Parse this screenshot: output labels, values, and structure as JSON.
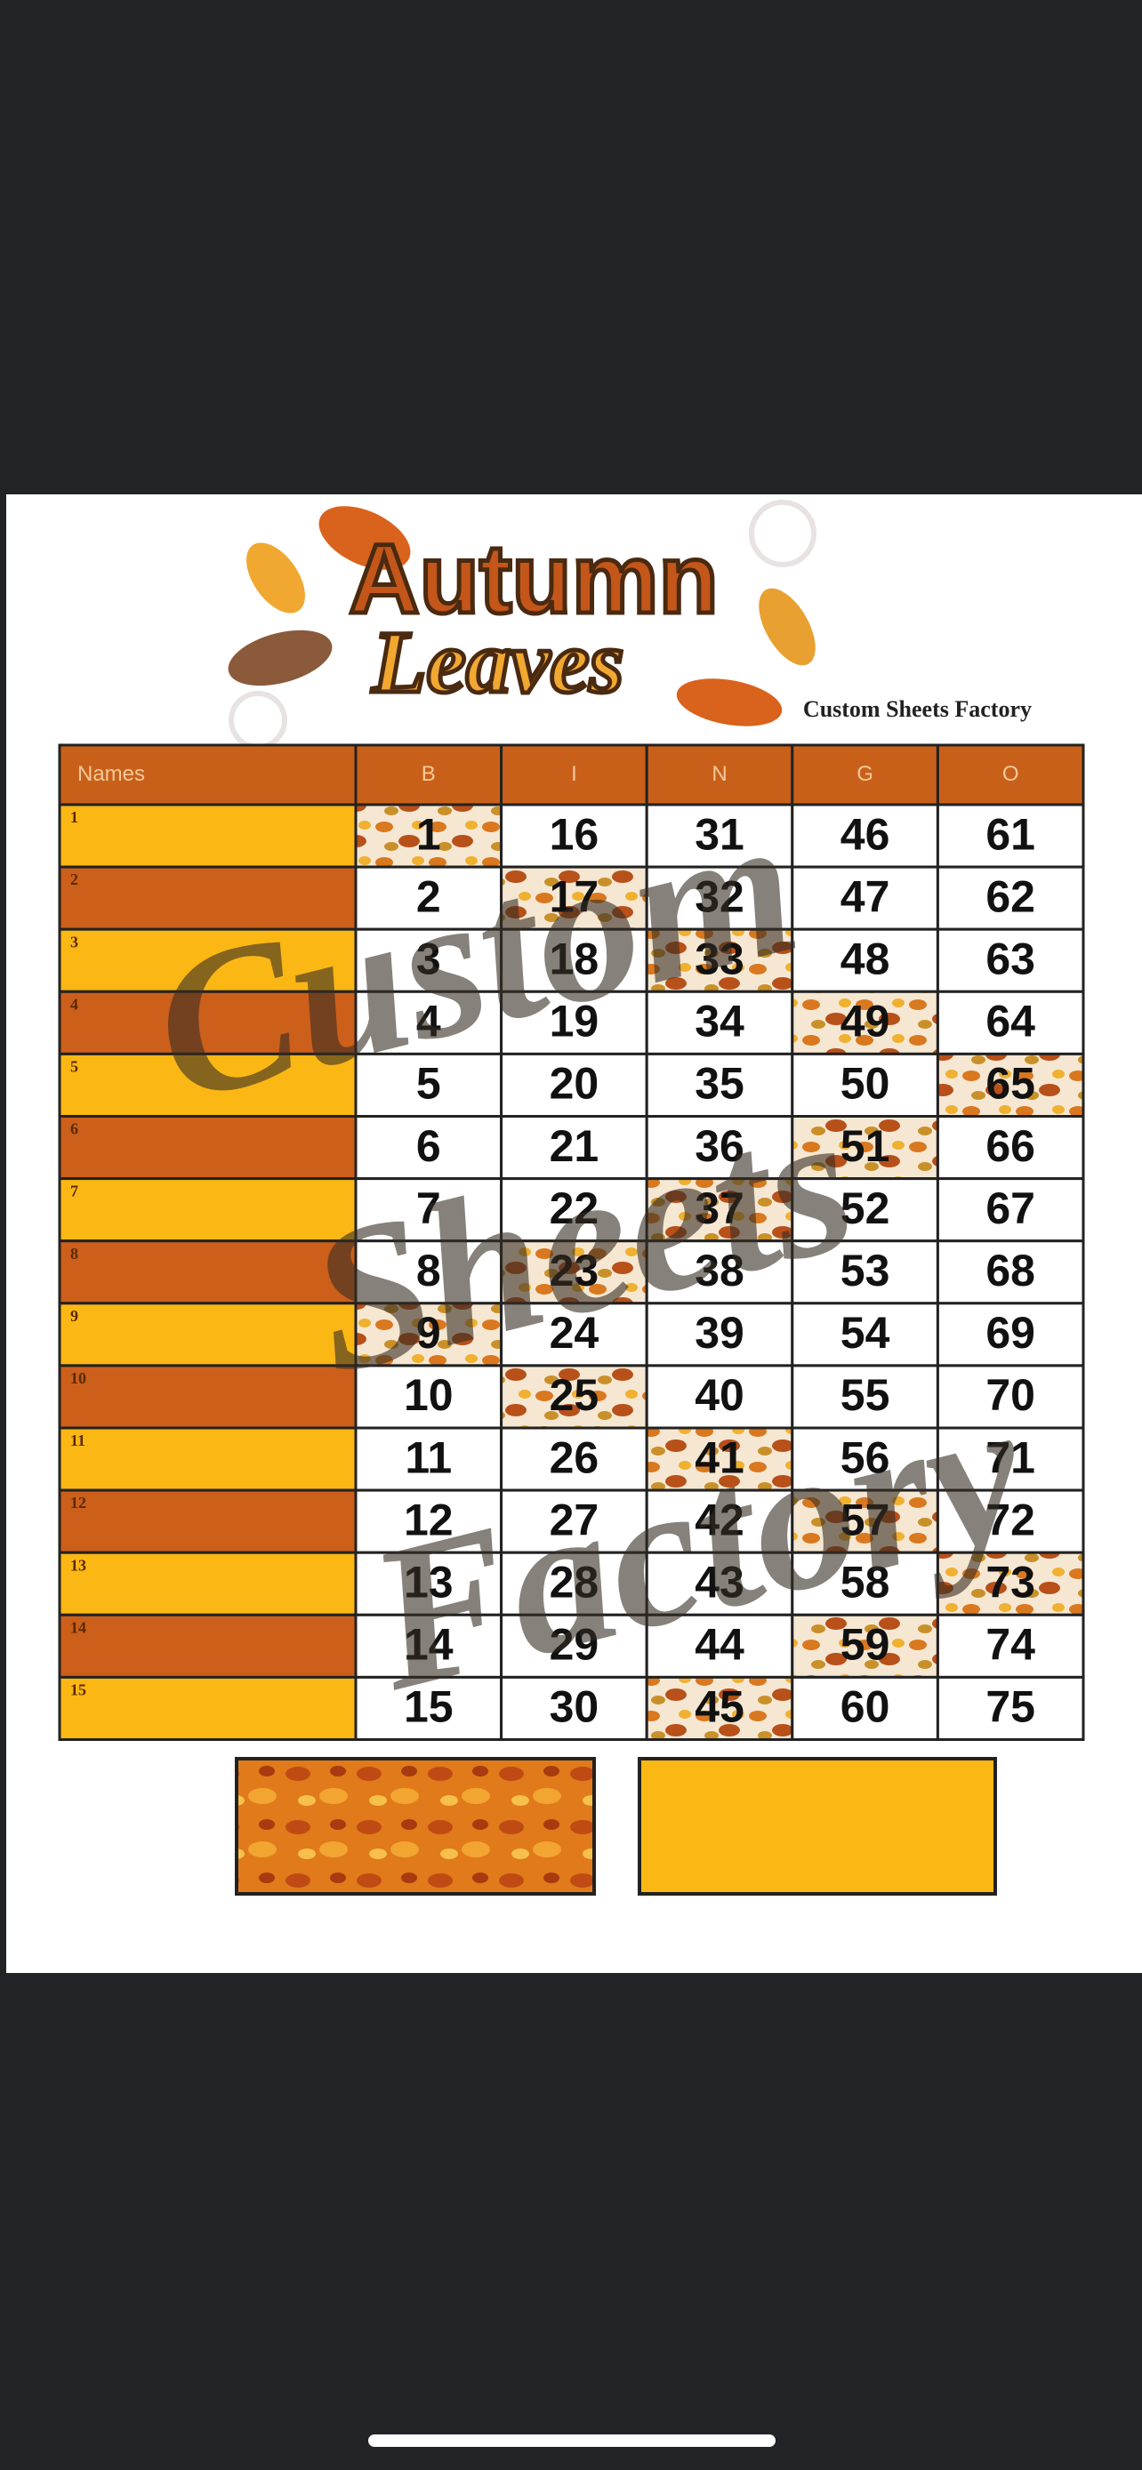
{
  "header": {
    "title_line1": "Autumn",
    "title_line2": "Leaves",
    "brand": "Custom Sheets Factory"
  },
  "table": {
    "columns": [
      "Names",
      "B",
      "I",
      "N",
      "G",
      "O"
    ],
    "rows": [
      {
        "label": "1",
        "cells": [
          "1",
          "16",
          "31",
          "46",
          "61"
        ],
        "marked": 0
      },
      {
        "label": "2",
        "cells": [
          "2",
          "17",
          "32",
          "47",
          "62"
        ],
        "marked": 1
      },
      {
        "label": "3",
        "cells": [
          "3",
          "18",
          "33",
          "48",
          "63"
        ],
        "marked": 2
      },
      {
        "label": "4",
        "cells": [
          "4",
          "19",
          "34",
          "49",
          "64"
        ],
        "marked": 3
      },
      {
        "label": "5",
        "cells": [
          "5",
          "20",
          "35",
          "50",
          "65"
        ],
        "marked": 4
      },
      {
        "label": "6",
        "cells": [
          "6",
          "21",
          "36",
          "51",
          "66"
        ],
        "marked": 3
      },
      {
        "label": "7",
        "cells": [
          "7",
          "22",
          "37",
          "52",
          "67"
        ],
        "marked": 2
      },
      {
        "label": "8",
        "cells": [
          "8",
          "23",
          "38",
          "53",
          "68"
        ],
        "marked": 1
      },
      {
        "label": "9",
        "cells": [
          "9",
          "24",
          "39",
          "54",
          "69"
        ],
        "marked": 0
      },
      {
        "label": "10",
        "cells": [
          "10",
          "25",
          "40",
          "55",
          "70"
        ],
        "marked": 1
      },
      {
        "label": "11",
        "cells": [
          "11",
          "26",
          "41",
          "56",
          "71"
        ],
        "marked": 2
      },
      {
        "label": "12",
        "cells": [
          "12",
          "27",
          "42",
          "57",
          "72"
        ],
        "marked": 3
      },
      {
        "label": "13",
        "cells": [
          "13",
          "28",
          "43",
          "58",
          "73"
        ],
        "marked": 4
      },
      {
        "label": "14",
        "cells": [
          "14",
          "29",
          "44",
          "59",
          "74"
        ],
        "marked": 3
      },
      {
        "label": "15",
        "cells": [
          "15",
          "30",
          "45",
          "60",
          "75"
        ],
        "marked": 2
      }
    ]
  },
  "watermark": [
    "Custom",
    "Sheets",
    "Factory"
  ]
}
